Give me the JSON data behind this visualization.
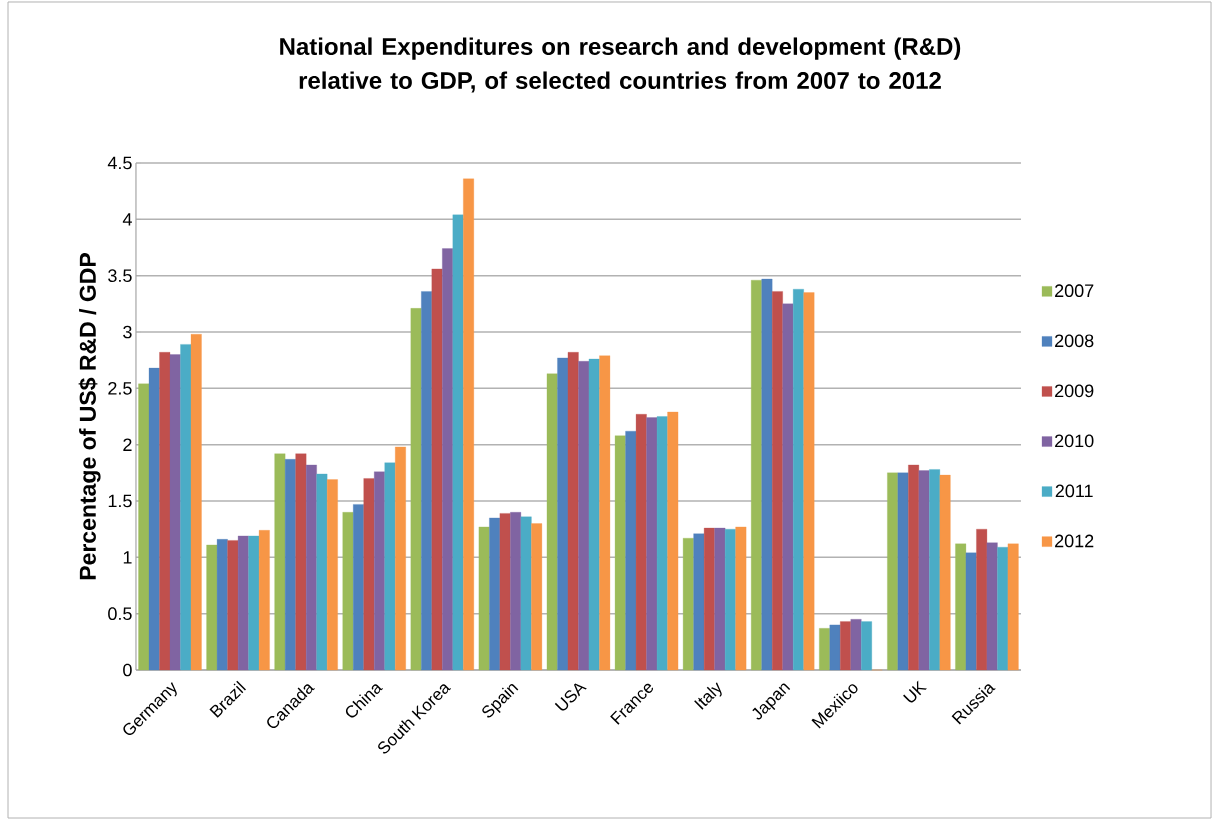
{
  "chart_data": {
    "type": "bar",
    "title": "National Expenditures on research and development (R&D) relative to GDP,  of selected countries from 2007 to 2012",
    "ylabel": "Percentage of US$ R&D  / GDP",
    "categories": [
      "Germany",
      "Brazil",
      "Canada",
      "China",
      "South Korea",
      "Spain",
      "USA",
      "France",
      "Italy",
      "Japan",
      "Mexiico",
      "UK",
      "Russia"
    ],
    "series": [
      {
        "name": "2007",
        "color": "#9bbb59",
        "values": [
          2.54,
          1.11,
          1.92,
          1.4,
          3.21,
          1.27,
          2.63,
          2.08,
          1.17,
          3.46,
          0.37,
          1.75,
          1.12
        ]
      },
      {
        "name": "2008",
        "color": "#4f81bd",
        "values": [
          2.68,
          1.16,
          1.87,
          1.47,
          3.36,
          1.35,
          2.77,
          2.12,
          1.21,
          3.47,
          0.4,
          1.75,
          1.04
        ]
      },
      {
        "name": "2009",
        "color": "#c0504d",
        "values": [
          2.82,
          1.15,
          1.92,
          1.7,
          3.56,
          1.39,
          2.82,
          2.27,
          1.26,
          3.36,
          0.43,
          1.82,
          1.25
        ]
      },
      {
        "name": "2010",
        "color": "#8064a2",
        "values": [
          2.8,
          1.19,
          1.82,
          1.76,
          3.74,
          1.4,
          2.74,
          2.24,
          1.26,
          3.25,
          0.45,
          1.77,
          1.13
        ]
      },
      {
        "name": "2011",
        "color": "#4bacc6",
        "values": [
          2.89,
          1.19,
          1.74,
          1.84,
          4.04,
          1.36,
          2.76,
          2.25,
          1.25,
          3.38,
          0.43,
          1.78,
          1.09
        ]
      },
      {
        "name": "2012",
        "color": "#f79646",
        "values": [
          2.98,
          1.24,
          1.69,
          1.98,
          4.36,
          1.3,
          2.79,
          2.29,
          1.27,
          3.35,
          0,
          1.73,
          1.12
        ]
      }
    ],
    "ylim": [
      0,
      4.5
    ],
    "yticks": [
      0,
      0.5,
      1,
      1.5,
      2,
      2.5,
      3,
      3.5,
      4,
      4.5
    ],
    "grid": "y",
    "legend": "right"
  }
}
